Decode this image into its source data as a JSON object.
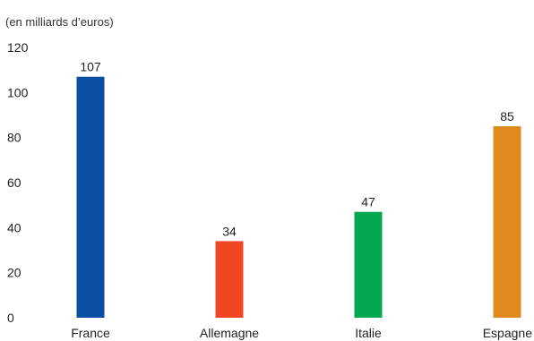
{
  "chart_data": {
    "type": "bar",
    "unit_label": "(en milliards d’euros)",
    "categories": [
      "France",
      "Allemagne",
      "Italie",
      "Espagne"
    ],
    "values": [
      107,
      34,
      47,
      85
    ],
    "colors": [
      "#0b4fa3",
      "#f04624",
      "#05a650",
      "#e08a1e"
    ],
    "ylim": [
      0,
      120
    ],
    "yticks": [
      "0",
      "20",
      "40",
      "60",
      "80",
      "100",
      "120"
    ],
    "data_labels": [
      "107",
      "34",
      "47",
      "85"
    ],
    "grid": false,
    "legend": "none"
  }
}
